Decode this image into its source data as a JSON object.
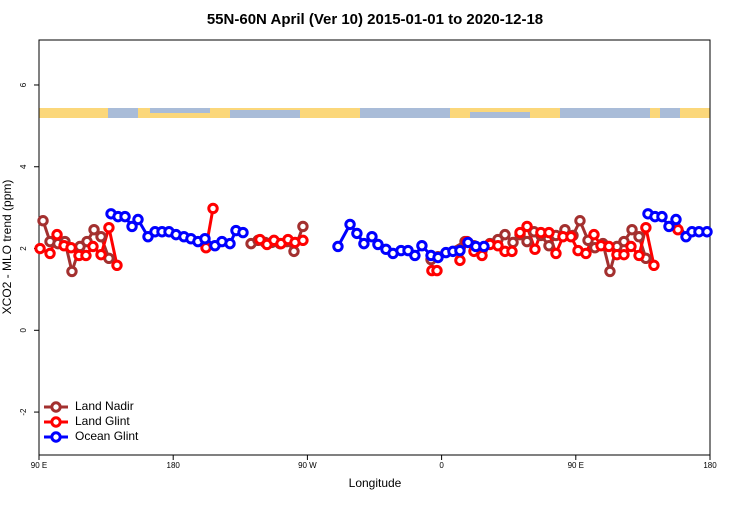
{
  "chart_data": {
    "type": "line",
    "title": "55N-60N April (Ver 10)   2015-01-01 to 2020-12-18",
    "x_label": "Longitude",
    "y_label": "XCO2 - MLO trend (ppm)",
    "xlim": [
      90,
      540
    ],
    "ylim": [
      -3.05,
      7.1
    ],
    "xticks": [
      {
        "value": 90,
        "label": "90 E"
      },
      180,
      {
        "value": 270,
        "label": "90 W"
      },
      {
        "value": 360,
        "label": "0"
      },
      {
        "value": 450,
        "label": "90 E"
      },
      {
        "value": 540,
        "label": "180"
      }
    ],
    "yticks": [
      -2,
      0,
      2,
      4,
      6
    ],
    "legend": "bottom-left",
    "series": [
      {
        "name": "Land Nadir",
        "color": "#a3302f",
        "x": [
          92.7,
          97.4,
          102.7,
          107.4,
          112.1,
          117.5,
          122.2,
          126.9,
          131.6,
          136.9,
          null,
          232.2,
          236.9,
          241.6,
          246.2,
          251.6,
          256.3,
          261,
          267,
          null,
          352.9,
          357.6,
          375.7,
          381.7,
          387.1,
          392.4,
          397.8,
          402.5,
          407.9,
          412.6,
          417.3,
          422,
          426.6,
          432,
          436.7,
          442.7,
          448.1,
          452.8,
          458.2,
          462.8,
          468.2,
          472.9,
          477.6,
          482.3,
          487.7,
          492.4,
          497
        ],
        "values": [
          2.68,
          2.17,
          2.12,
          2.17,
          1.44,
          2.05,
          2.17,
          2.46,
          2.29,
          1.76,
          null,
          2.12,
          2.2,
          2.15,
          2.15,
          2.12,
          2.17,
          1.93,
          2.54,
          null,
          1.73,
          1.8,
          2.17,
          2.07,
          1.95,
          2.12,
          2.22,
          2.34,
          2.15,
          2.34,
          2.17,
          2.41,
          2.32,
          2.07,
          2.32,
          2.46,
          2.32,
          2.68,
          2.2,
          2.02,
          2.12,
          1.44,
          2.05,
          2.17,
          2.46,
          2.29,
          1.76
        ]
      },
      {
        "name": "Land Glint",
        "color": "#ff0000",
        "x": [
          90.7,
          97.4,
          102.1,
          106.8,
          111.5,
          116.8,
          121.5,
          126.2,
          131.6,
          136.9,
          142.3,
          null,
          202,
          206.7,
          null,
          238.2,
          242.9,
          247.6,
          252.3,
          257,
          261.7,
          267,
          null,
          353.5,
          356.9,
          null,
          372.3,
          377,
          381.7,
          387.1,
          392.4,
          397.8,
          402.5,
          407.2,
          412.6,
          417.3,
          422.6,
          426.6,
          432,
          436.7,
          441.4,
          446.8,
          451.5,
          456.8,
          462.2,
          466.9,
          472.2,
          477.6,
          482.3,
          487,
          492.4,
          497,
          502.4,
          null,
          518.5
        ],
        "values": [
          2.0,
          1.88,
          2.34,
          2.07,
          2.02,
          1.83,
          1.83,
          2.05,
          1.85,
          2.51,
          1.59,
          null,
          2.02,
          2.98,
          null,
          2.22,
          2.1,
          2.2,
          2.12,
          2.22,
          2.15,
          2.2,
          null,
          1.46,
          1.46,
          null,
          1.71,
          2.17,
          1.93,
          1.83,
          2.1,
          2.07,
          1.93,
          1.93,
          2.39,
          2.54,
          1.98,
          2.39,
          2.39,
          1.88,
          2.29,
          2.29,
          1.95,
          1.88,
          2.34,
          2.07,
          2.05,
          1.85,
          1.85,
          2.05,
          1.83,
          2.51,
          1.59,
          null,
          2.46
        ]
      },
      {
        "name": "Ocean Glint",
        "color": "#0000ff",
        "x": [
          138.3,
          143,
          147.7,
          152.4,
          156.4,
          163.1,
          167.8,
          172.5,
          177.2,
          181.9,
          187.2,
          191.9,
          196.6,
          201.3,
          208,
          212.7,
          218.1,
          222.1,
          226.8,
          null,
          290.5,
          298.6,
          303.2,
          307.9,
          313.3,
          317.3,
          322.7,
          327.4,
          332.8,
          337.5,
          342.1,
          346.8,
          352.9,
          357.6,
          362.9,
          367.6,
          372.3,
          377.7,
          383,
          388.4,
          null,
          498.4,
          503.1,
          507.8,
          512.5,
          517.2,
          523.9,
          527.9,
          532.6,
          538
        ],
        "values": [
          2.85,
          2.78,
          2.78,
          2.54,
          2.71,
          2.29,
          2.41,
          2.41,
          2.41,
          2.34,
          2.29,
          2.24,
          2.17,
          2.24,
          2.07,
          2.17,
          2.12,
          2.44,
          2.39,
          null,
          2.05,
          2.59,
          2.37,
          2.12,
          2.29,
          2.1,
          1.98,
          1.88,
          1.95,
          1.95,
          1.83,
          2.07,
          1.83,
          1.78,
          1.9,
          1.93,
          1.95,
          2.15,
          2.05,
          2.05,
          null,
          2.85,
          2.78,
          2.78,
          2.54,
          2.71,
          2.29,
          2.41,
          2.41,
          2.41
        ]
      }
    ]
  }
}
